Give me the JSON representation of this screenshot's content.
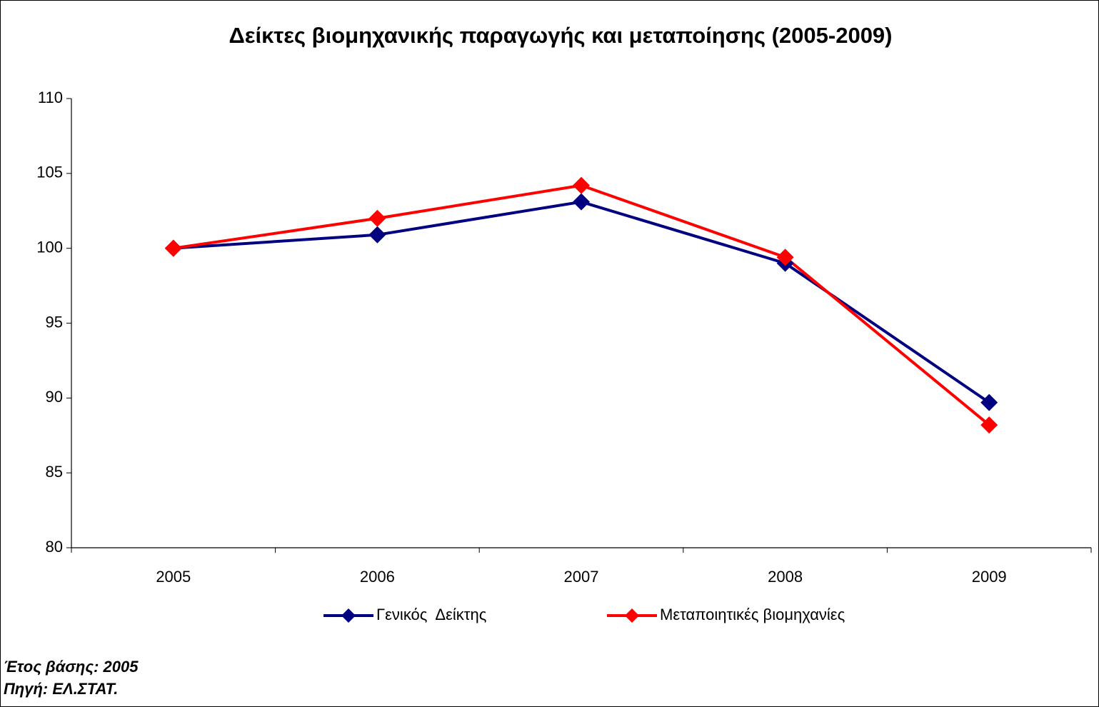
{
  "chart_data": {
    "type": "line",
    "title": "Δείκτες βιομηχανικής παραγωγής και μεταποίησης (2005-2009)",
    "categories": [
      "2005",
      "2006",
      "2007",
      "2008",
      "2009"
    ],
    "series": [
      {
        "name": "Γενικός  Δείκτης",
        "color": "#000080",
        "values": [
          100,
          100.9,
          103.1,
          99.0,
          89.7
        ]
      },
      {
        "name": "Μεταποιητικές βιομηχανίες",
        "color": "#ff0000",
        "values": [
          100,
          102.0,
          104.2,
          99.4,
          88.2
        ]
      }
    ],
    "ylim": [
      80,
      110
    ],
    "yticks": [
      80,
      85,
      90,
      95,
      100,
      105,
      110
    ],
    "grid": false,
    "legend": "bottom",
    "annotations": [
      "Έτος βάσης: 2005",
      "Πηγή: ΕΛ.ΣΤΑΤ."
    ]
  }
}
